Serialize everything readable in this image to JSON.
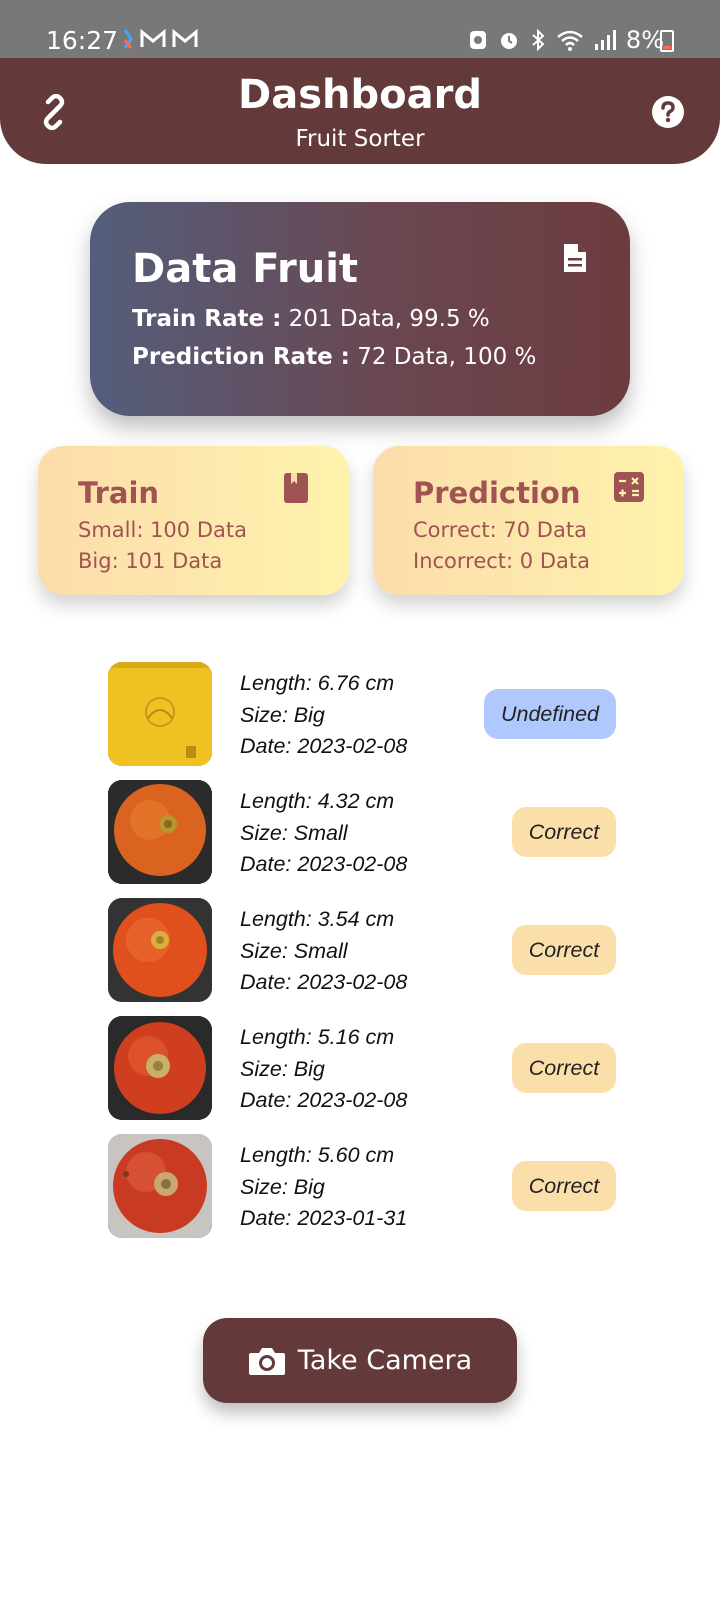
{
  "status_bar": {
    "time": "16:27",
    "battery": "8%"
  },
  "appbar": {
    "title": "Dashboard",
    "subtitle": "Fruit Sorter"
  },
  "data_card": {
    "title": "Data Fruit",
    "train_label": "Train Rate :",
    "train_value": "201 Data, 99.5 %",
    "prediction_label": "Prediction Rate :",
    "prediction_value": "72 Data, 100 %"
  },
  "train_card": {
    "title": "Train",
    "line1": "Small: 100 Data",
    "line2": "Big: 101 Data"
  },
  "prediction_card": {
    "title": "Prediction",
    "line1": "Correct: 70 Data",
    "line2": "Incorrect: 0 Data"
  },
  "items": [
    {
      "length": "Length: 6.76 cm",
      "size": "Size: Big",
      "date": "Date: 2023-02-08",
      "status": "Undefined"
    },
    {
      "length": "Length: 4.32 cm",
      "size": "Size: Small",
      "date": "Date: 2023-02-08",
      "status": "Correct"
    },
    {
      "length": "Length: 3.54 cm",
      "size": "Size: Small",
      "date": "Date: 2023-02-08",
      "status": "Correct"
    },
    {
      "length": "Length: 5.16 cm",
      "size": "Size: Big",
      "date": "Date: 2023-02-08",
      "status": "Correct"
    },
    {
      "length": "Length: 5.60 cm",
      "size": "Size: Big",
      "date": "Date: 2023-01-31",
      "status": "Correct"
    }
  ],
  "take_button": {
    "label": "Take Camera"
  },
  "colors": {
    "primary": "#633939",
    "card_text": "#a05353",
    "undefined_badge": "#afc9ff",
    "correct_badge": "#fbdfab"
  }
}
